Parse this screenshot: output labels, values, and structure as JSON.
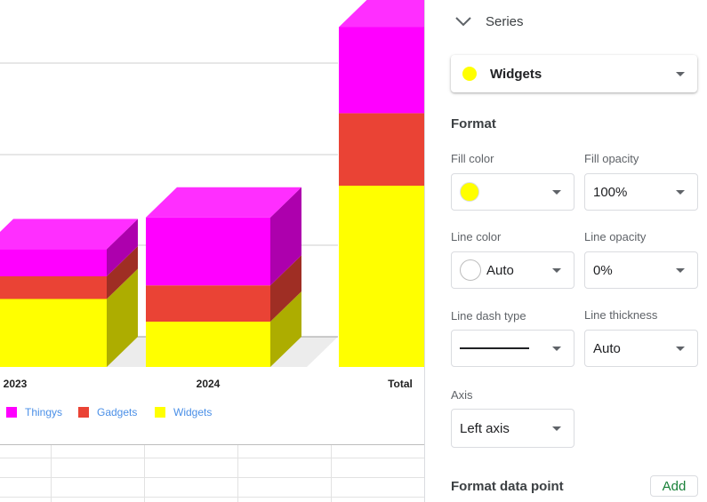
{
  "chart_data": {
    "type": "bar",
    "stacked": true,
    "style": "3d",
    "categories": [
      "2023",
      "2024",
      "Total"
    ],
    "series": [
      {
        "name": "Widgets",
        "color": "#ffff00",
        "values": [
          75,
          50,
          200
        ]
      },
      {
        "name": "Gadgets",
        "color": "#ea4335",
        "values": [
          25,
          40,
          80
        ]
      },
      {
        "name": "Thingys",
        "color": "#ff00ff",
        "values": [
          30,
          75,
          95
        ]
      }
    ],
    "legend": [
      "Thingys",
      "Gadgets",
      "Widgets"
    ],
    "legend_position": "bottom",
    "grid": true
  },
  "panel": {
    "series_header": "Series",
    "selected_series": "Widgets",
    "format_title": "Format",
    "fill_color_label": "Fill color",
    "fill_opacity_label": "Fill opacity",
    "fill_opacity_value": "100%",
    "line_color_label": "Line color",
    "line_color_value": "Auto",
    "line_opacity_label": "Line opacity",
    "line_opacity_value": "0%",
    "line_dash_label": "Line dash type",
    "line_thickness_label": "Line thickness",
    "line_thickness_value": "Auto",
    "axis_label": "Axis",
    "axis_value": "Left axis",
    "format_data_point_title": "Format data point",
    "add_label": "Add"
  },
  "icons": {
    "collapse": "chevron-down-icon",
    "dropdown": "caret-down-icon"
  }
}
